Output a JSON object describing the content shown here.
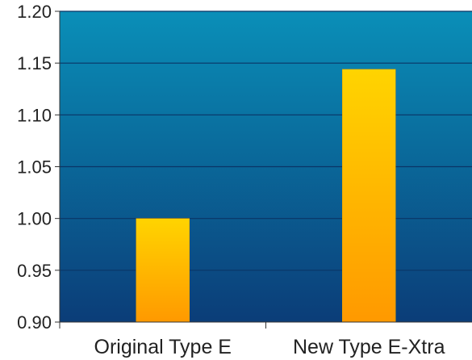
{
  "chart_data": {
    "type": "bar",
    "title": "",
    "xlabel": "",
    "ylabel": "",
    "categories": [
      "Original Type E",
      "New Type E-Xtra"
    ],
    "values": [
      1.0,
      1.144
    ],
    "ylim": [
      0.9,
      1.2
    ],
    "yticks": [
      "0.90",
      "0.95",
      "1.00",
      "1.05",
      "1.10",
      "1.15",
      "1.20"
    ],
    "grid": true,
    "legend": "none",
    "colors": {
      "plot_bg_top": "#0a8fb8",
      "plot_bg_bottom": "#0b3d78",
      "bar_top": "#ffd400",
      "bar_bottom": "#ff9900",
      "gridline": "#0a3566",
      "axis": "#333333"
    }
  }
}
